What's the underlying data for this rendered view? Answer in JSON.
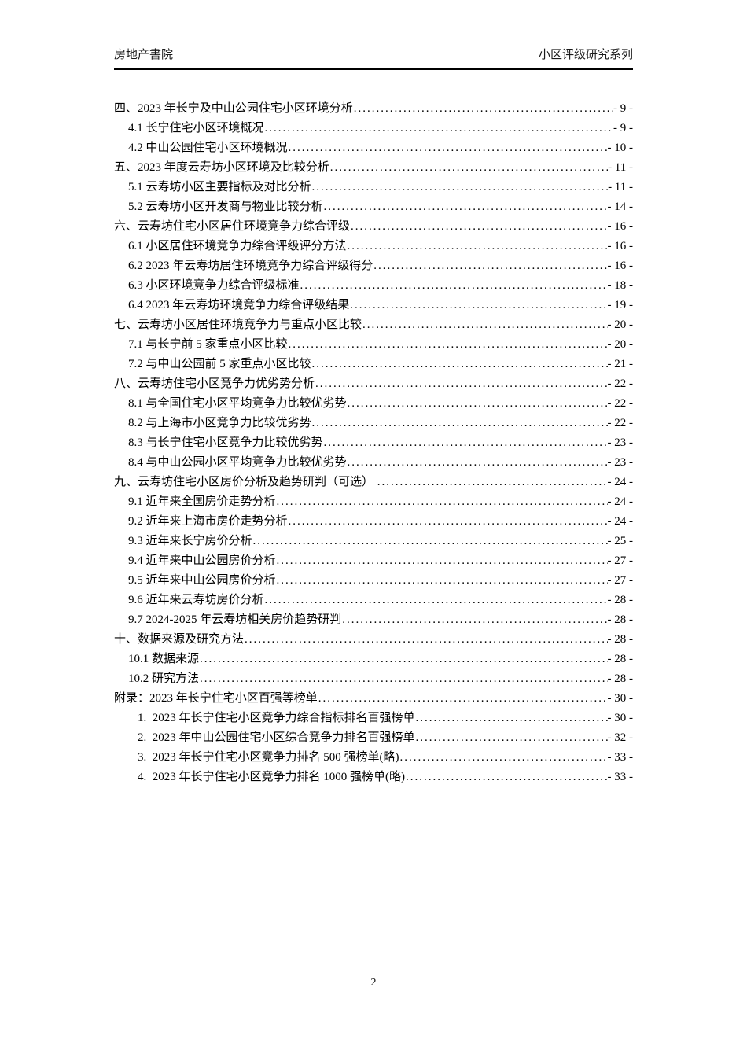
{
  "header": {
    "left": "房地产書院",
    "right": "小区评级研究系列"
  },
  "toc": {
    "entries": [
      {
        "level": 1,
        "label": "四、2023 年长宁及中山公园住宅小区环境分析",
        "page": "- 9 -"
      },
      {
        "level": 2,
        "label": "4.1 长宁住宅小区环境概况",
        "page": "- 9 -"
      },
      {
        "level": 2,
        "label": "4.2 中山公园住宅小区环境概况",
        "page": "- 10 -"
      },
      {
        "level": 1,
        "label": "五、2023 年度云寿坊小区环境及比较分析",
        "page": "- 11 -"
      },
      {
        "level": 2,
        "label": "5.1 云寿坊小区主要指标及对比分析",
        "page": "- 11 -"
      },
      {
        "level": 2,
        "label": "5.2 云寿坊小区开发商与物业比较分析",
        "page": "- 14 -"
      },
      {
        "level": 1,
        "label": "六、云寿坊住宅小区居住环境竞争力综合评级",
        "page": "- 16 -"
      },
      {
        "level": 2,
        "label": "6.1 小区居住环境竞争力综合评级评分方法",
        "page": "- 16 -"
      },
      {
        "level": 2,
        "label": "6.2 2023 年云寿坊居住环境竞争力综合评级得分",
        "page": "- 16 -"
      },
      {
        "level": 2,
        "label": "6.3 小区环境竞争力综合评级标准",
        "page": "- 18 -"
      },
      {
        "level": 2,
        "label": "6.4 2023 年云寿坊环境竞争力综合评级结果",
        "page": "- 19 -"
      },
      {
        "level": 1,
        "label": "七、云寿坊小区居住环境竞争力与重点小区比较",
        "page": "- 20 -"
      },
      {
        "level": 2,
        "label": "7.1 与长宁前 5 家重点小区比较",
        "page": "- 20 -"
      },
      {
        "level": 2,
        "label": "7.2 与中山公园前 5 家重点小区比较",
        "page": "- 21 -"
      },
      {
        "level": 1,
        "label": "八、云寿坊住宅小区竞争力优劣势分析",
        "page": "- 22 -"
      },
      {
        "level": 2,
        "label": "8.1 与全国住宅小区平均竞争力比较优劣势",
        "page": "- 22 -"
      },
      {
        "level": 2,
        "label": "8.2 与上海市小区竞争力比较优劣势",
        "page": "- 22 -"
      },
      {
        "level": 2,
        "label": "8.3 与长宁住宅小区竞争力比较优劣势",
        "page": "- 23 -"
      },
      {
        "level": 2,
        "label": "8.4 与中山公园小区平均竞争力比较优劣势",
        "page": "- 23 -"
      },
      {
        "level": 1,
        "label": "九、云寿坊住宅小区房价分析及趋势研判（可选） ",
        "page": "- 24 -"
      },
      {
        "level": 2,
        "label": "9.1 近年来全国房价走势分析",
        "page": "- 24 -"
      },
      {
        "level": 2,
        "label": "9.2 近年来上海市房价走势分析",
        "page": "- 24 -"
      },
      {
        "level": 2,
        "label": "9.3 近年来长宁房价分析",
        "page": "- 25 -"
      },
      {
        "level": 2,
        "label": "9.4 近年来中山公园房价分析",
        "page": "- 27 -"
      },
      {
        "level": 2,
        "label": "9.5 近年来中山公园房价分析",
        "page": "- 27 -"
      },
      {
        "level": 2,
        "label": "9.6 近年来云寿坊房价分析",
        "page": "- 28 -"
      },
      {
        "level": 2,
        "label": "9.7 2024-2025 年云寿坊相关房价趋势研判",
        "page": "- 28 -"
      },
      {
        "level": 1,
        "label": "十、数据来源及研究方法",
        "page": "- 28 -"
      },
      {
        "level": 2,
        "label": "10.1 数据来源",
        "page": "- 28 -"
      },
      {
        "level": 2,
        "label": "10.2 研究方法",
        "page": "- 28 -"
      },
      {
        "level": 1,
        "label": "附录：2023 年长宁住宅小区百强等榜单",
        "page": "- 30 -"
      },
      {
        "level": 3,
        "label": "1.  2023 年长宁住宅小区竞争力综合指标排名百强榜单",
        "page": "- 30 -"
      },
      {
        "level": 3,
        "label": "2.  2023 年中山公园住宅小区综合竞争力排名百强榜单",
        "page": "- 32 -"
      },
      {
        "level": 3,
        "label": "3.  2023 年长宁住宅小区竞争力排名 500 强榜单(略)",
        "page": "- 33 -"
      },
      {
        "level": 3,
        "label": "4.  2023 年长宁住宅小区竞争力排名 1000 强榜单(略)",
        "page": "- 33 -"
      }
    ]
  },
  "footer": {
    "page_number": "2"
  }
}
